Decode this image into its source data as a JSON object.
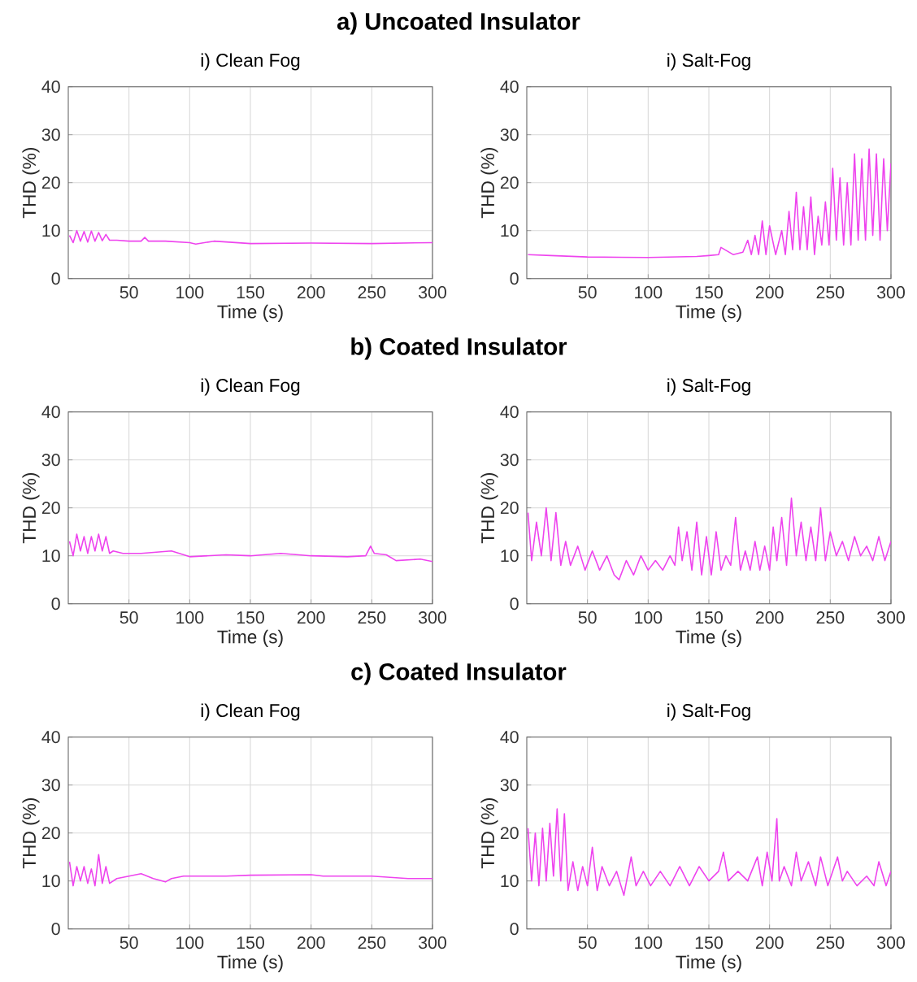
{
  "chart_data": [
    {
      "type": "line",
      "title": "a) Uncoated Insulator",
      "subtitle": "i) Clean Fog",
      "xlabel": "Time (s)",
      "ylabel": "THD (%)",
      "xlim": [
        0,
        300
      ],
      "ylim": [
        0,
        40
      ],
      "xticks": [
        50,
        100,
        150,
        200,
        250,
        300
      ],
      "yticks": [
        0,
        10,
        20,
        30,
        40
      ],
      "grid": true,
      "color": "#ee44ee",
      "x": [
        1,
        4,
        7,
        10,
        13,
        16,
        19,
        22,
        25,
        28,
        31,
        34,
        40,
        50,
        60,
        63,
        66,
        80,
        100,
        105,
        120,
        150,
        200,
        250,
        300
      ],
      "values": [
        9,
        7.5,
        10,
        7.8,
        9.8,
        7.6,
        9.9,
        7.8,
        9.6,
        7.9,
        9.2,
        8,
        8,
        7.8,
        7.8,
        8.6,
        7.8,
        7.8,
        7.5,
        7.2,
        7.8,
        7.3,
        7.4,
        7.3,
        7.5
      ]
    },
    {
      "type": "line",
      "subtitle": "i) Salt-Fog",
      "xlabel": "Time (s)",
      "ylabel": "THD (%)",
      "xlim": [
        0,
        300
      ],
      "ylim": [
        0,
        40
      ],
      "xticks": [
        50,
        100,
        150,
        200,
        250,
        300
      ],
      "yticks": [
        0,
        10,
        20,
        30,
        40
      ],
      "grid": true,
      "color": "#ee44ee",
      "x": [
        1,
        20,
        50,
        100,
        140,
        150,
        158,
        160,
        170,
        178,
        182,
        185,
        188,
        191,
        194,
        197,
        200,
        205,
        210,
        213,
        216,
        219,
        222,
        225,
        228,
        231,
        234,
        237,
        240,
        243,
        246,
        249,
        252,
        255,
        258,
        261,
        264,
        267,
        270,
        273,
        276,
        279,
        282,
        285,
        288,
        291,
        294,
        297,
        300
      ],
      "values": [
        5,
        4.8,
        4.5,
        4.4,
        4.6,
        4.8,
        5,
        6.5,
        5,
        5.5,
        8,
        5,
        9,
        5,
        12,
        5,
        11,
        5,
        10,
        5,
        14,
        6,
        18,
        6,
        15,
        6,
        17,
        5,
        13,
        7,
        16,
        7,
        23,
        8,
        21,
        7,
        20,
        7,
        26,
        8,
        25,
        8,
        27,
        9,
        26,
        8,
        25,
        10,
        24
      ]
    },
    {
      "type": "line",
      "title": "b) Coated Insulator",
      "subtitle": "i) Clean Fog",
      "xlabel": "Time (s)",
      "ylabel": "THD (%)",
      "xlim": [
        0,
        300
      ],
      "ylim": [
        0,
        40
      ],
      "xticks": [
        50,
        100,
        150,
        200,
        250,
        300
      ],
      "yticks": [
        0,
        10,
        20,
        30,
        40
      ],
      "grid": true,
      "color": "#ee44ee",
      "x": [
        1,
        4,
        7,
        10,
        13,
        16,
        19,
        22,
        25,
        28,
        31,
        34,
        37,
        45,
        60,
        85,
        100,
        130,
        150,
        175,
        200,
        230,
        245,
        249,
        252,
        262,
        270,
        290,
        300
      ],
      "values": [
        13,
        10,
        14.5,
        11,
        14,
        10.5,
        14,
        11,
        14.5,
        11,
        14,
        10.5,
        11,
        10.5,
        10.5,
        11,
        9.8,
        10.2,
        10,
        10.5,
        10,
        9.8,
        10,
        12,
        10.5,
        10.2,
        9,
        9.3,
        8.8
      ]
    },
    {
      "type": "line",
      "subtitle": "i) Salt-Fog",
      "xlabel": "Time (s)",
      "ylabel": "THD (%)",
      "xlim": [
        0,
        300
      ],
      "ylim": [
        0,
        40
      ],
      "xticks": [
        50,
        100,
        150,
        200,
        250,
        300
      ],
      "yticks": [
        0,
        10,
        20,
        30,
        40
      ],
      "grid": true,
      "color": "#ee44ee",
      "x": [
        1,
        4,
        8,
        12,
        16,
        20,
        24,
        28,
        32,
        36,
        42,
        48,
        54,
        60,
        66,
        72,
        76,
        82,
        88,
        94,
        100,
        106,
        112,
        118,
        122,
        125,
        128,
        132,
        136,
        140,
        144,
        148,
        152,
        156,
        160,
        164,
        168,
        172,
        176,
        180,
        184,
        188,
        192,
        196,
        200,
        203,
        206,
        210,
        214,
        218,
        222,
        226,
        230,
        234,
        238,
        242,
        246,
        250,
        255,
        260,
        265,
        270,
        275,
        280,
        285,
        290,
        295,
        300
      ],
      "values": [
        19,
        9,
        17,
        10,
        20,
        9,
        19,
        8,
        13,
        8,
        12,
        7,
        11,
        7,
        10,
        6,
        5,
        9,
        6,
        10,
        7,
        9,
        7,
        10,
        8,
        16,
        9,
        15,
        7,
        17,
        6,
        14,
        6,
        15,
        7,
        10,
        8,
        18,
        7,
        11,
        7,
        13,
        7,
        12,
        7,
        16,
        9,
        18,
        8,
        22,
        10,
        17,
        9,
        16,
        9,
        20,
        9,
        15,
        10,
        13,
        9,
        14,
        10,
        12,
        9,
        14,
        9,
        13
      ]
    },
    {
      "type": "line",
      "title": "c) Coated Insulator",
      "subtitle": "i) Clean Fog",
      "xlabel": "Time (s)",
      "ylabel": "THD (%)",
      "xlim": [
        0,
        300
      ],
      "ylim": [
        0,
        40
      ],
      "xticks": [
        50,
        100,
        150,
        200,
        250,
        300
      ],
      "yticks": [
        0,
        10,
        20,
        30,
        40
      ],
      "grid": true,
      "color": "#ee44ee",
      "x": [
        1,
        4,
        7,
        10,
        13,
        16,
        19,
        22,
        25,
        28,
        31,
        34,
        40,
        50,
        60,
        70,
        80,
        85,
        95,
        130,
        150,
        200,
        210,
        250,
        280,
        300
      ],
      "values": [
        14,
        9,
        13,
        10,
        13,
        9.5,
        12.5,
        9,
        15.5,
        9.5,
        13,
        9.5,
        10.5,
        11,
        11.5,
        10.5,
        9.8,
        10.5,
        11,
        11,
        11.2,
        11.3,
        11,
        11,
        10.5,
        10.5
      ]
    },
    {
      "type": "line",
      "subtitle": "i) Salt-Fog",
      "xlabel": "Time (s)",
      "ylabel": "THD (%)",
      "xlim": [
        0,
        300
      ],
      "ylim": [
        0,
        40
      ],
      "xticks": [
        50,
        100,
        150,
        200,
        250,
        300
      ],
      "yticks": [
        0,
        10,
        20,
        30,
        40
      ],
      "grid": true,
      "color": "#ee44ee",
      "x": [
        1,
        4,
        7,
        10,
        13,
        16,
        19,
        22,
        25,
        28,
        31,
        34,
        38,
        42,
        46,
        50,
        54,
        58,
        62,
        68,
        74,
        80,
        86,
        90,
        96,
        102,
        110,
        118,
        126,
        134,
        142,
        150,
        158,
        162,
        166,
        174,
        182,
        190,
        194,
        198,
        202,
        206,
        208,
        212,
        218,
        222,
        226,
        232,
        238,
        242,
        248,
        256,
        260,
        264,
        272,
        280,
        286,
        290,
        296,
        300
      ],
      "values": [
        21,
        10,
        20,
        9,
        21,
        10,
        22,
        11,
        25,
        10,
        24,
        8,
        14,
        8,
        13,
        9,
        17,
        8,
        13,
        9,
        12,
        7,
        15,
        9,
        12,
        9,
        12,
        9,
        13,
        9,
        13,
        10,
        12,
        16,
        10,
        12,
        10,
        15,
        9,
        16,
        10,
        23,
        10,
        13,
        9,
        16,
        10,
        14,
        9,
        15,
        9,
        15,
        10,
        12,
        9,
        11,
        9,
        14,
        9,
        12
      ]
    }
  ]
}
